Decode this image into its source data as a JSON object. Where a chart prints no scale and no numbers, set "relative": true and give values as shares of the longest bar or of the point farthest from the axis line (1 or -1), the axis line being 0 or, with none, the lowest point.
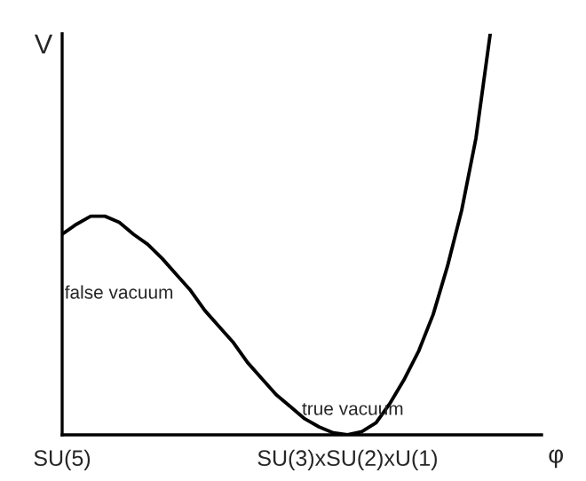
{
  "chart_data": {
    "type": "line",
    "relative": true,
    "xlabel": "φ",
    "ylabel": "V",
    "categories": [
      "SU(5)",
      null,
      null,
      null,
      null,
      null,
      null,
      null,
      null,
      null,
      null,
      null,
      null,
      null,
      null,
      null,
      null,
      null,
      null,
      null,
      "SU(3)xSU(2)xU(1)",
      null,
      null,
      null,
      null,
      null,
      null,
      null,
      null,
      null,
      null
    ],
    "series": [
      {
        "color": "#000000",
        "values": [
          0.5,
          0.525,
          0.545,
          0.545,
          0.53,
          0.5,
          0.475,
          0.44,
          0.4,
          0.36,
          0.31,
          0.27,
          0.23,
          0.18,
          0.14,
          0.1,
          0.07,
          0.04,
          0.02,
          0.005,
          0,
          0.008,
          0.03,
          0.08,
          0.14,
          0.21,
          0.3,
          0.42,
          0.56,
          0.74,
          1.0
        ]
      }
    ],
    "annotations": [
      "false vacuum",
      "true vacuum"
    ],
    "marker": "none",
    "line_style": "solid",
    "grid": false
  }
}
